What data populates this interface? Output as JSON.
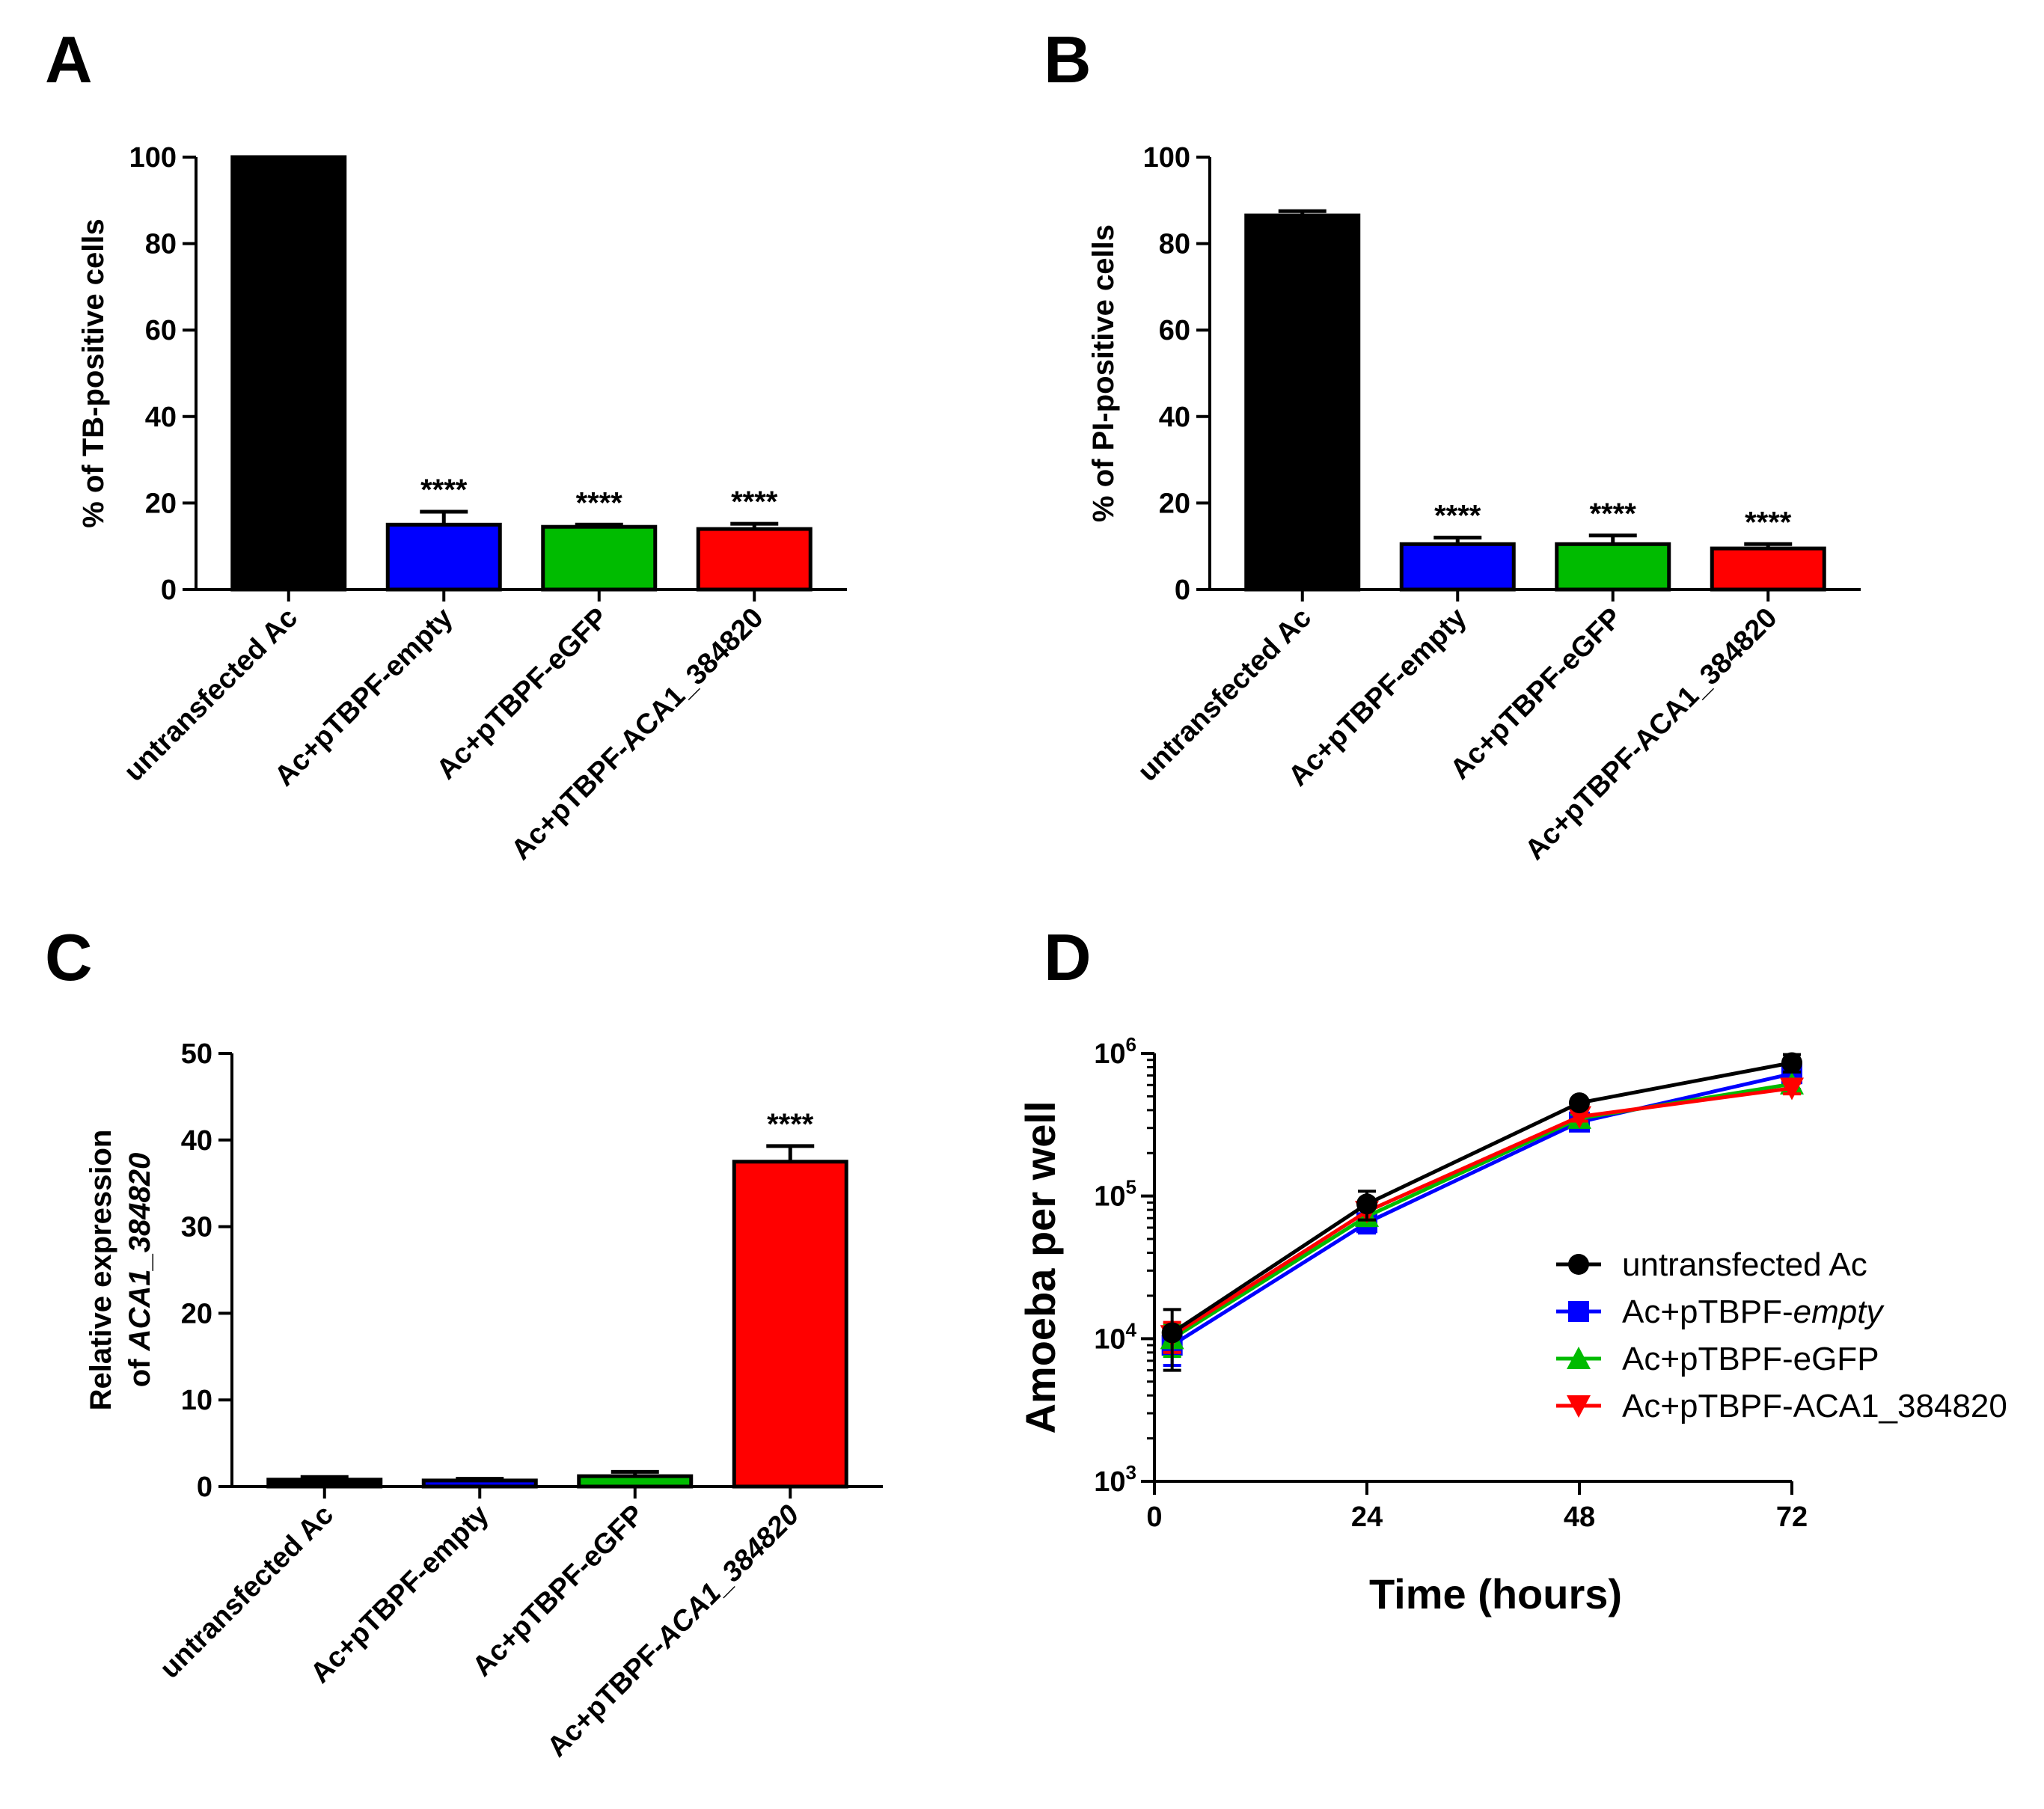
{
  "panels": [
    {
      "letter": "A",
      "chart_data": {
        "type": "bar",
        "ylabel": "% of TB-positive cells",
        "ylim": [
          0,
          100
        ],
        "yticks": [
          0,
          20,
          40,
          60,
          80,
          100
        ],
        "categories": [
          "untransfected Ac",
          "Ac+pTBPF-empty",
          "Ac+pTBPF-eGFP",
          "Ac+pTBPF-ACA1_384820"
        ],
        "values": [
          100,
          15,
          14.5,
          14
        ],
        "errors": [
          0,
          3,
          0.5,
          1.2
        ],
        "colors": [
          "#000000",
          "#0000ff",
          "#00bb00",
          "#ff0000"
        ],
        "significance": [
          "",
          "****",
          "****",
          "****"
        ]
      }
    },
    {
      "letter": "B",
      "chart_data": {
        "type": "bar",
        "ylabel": "% of PI-positive cells",
        "ylim": [
          0,
          100
        ],
        "yticks": [
          0,
          20,
          40,
          60,
          80,
          100
        ],
        "categories": [
          "untransfected Ac",
          "Ac+pTBPF-empty",
          "Ac+pTBPF-eGFP",
          "Ac+pTBPF-ACA1_384820"
        ],
        "values": [
          86.5,
          10.5,
          10.5,
          9.5
        ],
        "errors": [
          1,
          1.5,
          2,
          1
        ],
        "colors": [
          "#000000",
          "#0000ff",
          "#00bb00",
          "#ff0000"
        ],
        "significance": [
          "",
          "****",
          "****",
          "****"
        ]
      }
    },
    {
      "letter": "C",
      "chart_data": {
        "type": "bar",
        "ylabel_line1": "Relative expression",
        "ylabel_line2_prefix": "of ",
        "ylabel_line2_italic": "ACA1_384820",
        "ylim": [
          0,
          50
        ],
        "yticks": [
          0,
          10,
          20,
          30,
          40,
          50
        ],
        "categories": [
          "untransfected Ac",
          "Ac+pTBPF-empty",
          "Ac+pTBPF-eGFP",
          "Ac+pTBPF-"
        ],
        "category_italic_suffix": [
          "",
          "",
          "",
          "ACA1_384820"
        ],
        "values": [
          0.8,
          0.7,
          1.2,
          37.5
        ],
        "errors": [
          0.3,
          0.2,
          0.5,
          1.8
        ],
        "colors": [
          "#000000",
          "#0000ff",
          "#00bb00",
          "#ff0000"
        ],
        "significance": [
          "",
          "",
          "",
          "****"
        ]
      }
    },
    {
      "letter": "D",
      "chart_data": {
        "type": "line",
        "yscale": "log",
        "ylabel": "Amoeba per well",
        "xlabel": "Time (hours)",
        "x": [
          2,
          24,
          48,
          72
        ],
        "xticks": [
          0,
          24,
          48,
          72
        ],
        "xlim": [
          0,
          72
        ],
        "ylim_exp": [
          3,
          6
        ],
        "ytick_base": "10",
        "yticks_exp": [
          3,
          4,
          5,
          6
        ],
        "series": [
          {
            "name": "untransfected Ac",
            "name_prefix": "untransfected Ac",
            "name_italic": "",
            "color": "#000000",
            "marker": "circle",
            "values": [
              11000,
              88000,
              450000,
              860000
            ],
            "errors": [
              5000,
              20000,
              30000,
              120000
            ]
          },
          {
            "name": "Ac+pTBPF-empty",
            "name_prefix": "Ac+pTBPF-",
            "name_italic": "empty",
            "color": "#0000ff",
            "marker": "square",
            "values": [
              9000,
              65000,
              330000,
              720000
            ],
            "errors": [
              2500,
              10000,
              25000,
              60000
            ]
          },
          {
            "name": "Ac+pTBPF-eGFP",
            "name_prefix": "Ac+pTBPF-eGFP",
            "name_italic": "",
            "color": "#00bb00",
            "marker": "triangle-up",
            "values": [
              10000,
              72000,
              350000,
              610000
            ],
            "errors": [
              2500,
              10000,
              25000,
              50000
            ]
          },
          {
            "name": "Ac+pTBPF-ACA1_384820",
            "name_prefix": "Ac+pTBPF-ACA1_384820",
            "name_italic": "",
            "color": "#ff0000",
            "marker": "triangle-down",
            "values": [
              10500,
              78000,
              360000,
              570000
            ],
            "errors": [
              2500,
              10000,
              25000,
              50000
            ]
          }
        ]
      }
    }
  ]
}
